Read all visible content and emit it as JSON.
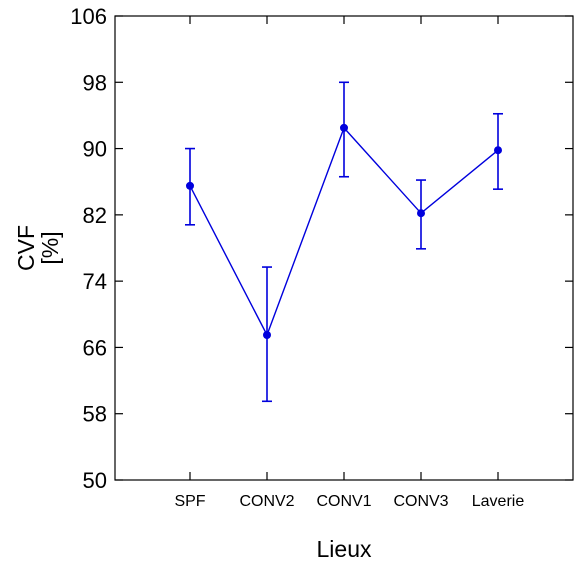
{
  "chart_data": {
    "type": "line",
    "title": "",
    "xlabel": "Lieux",
    "ylabel": [
      "CVF",
      "[%]"
    ],
    "categories": [
      "SPF",
      "CONV2",
      "CONV1",
      "CONV3",
      "Laverie"
    ],
    "ylim": [
      50,
      106
    ],
    "yticks": [
      50,
      58,
      66,
      74,
      82,
      90,
      98,
      106
    ],
    "grid": false,
    "legend": "none",
    "color": "#0000dd",
    "series": [
      {
        "values": [
          85.5,
          67.5,
          92.5,
          82.2,
          89.8
        ],
        "err_upper": [
          90.0,
          75.7,
          98.0,
          86.2,
          94.2
        ],
        "err_lower": [
          80.8,
          59.5,
          86.6,
          77.9,
          85.1
        ]
      }
    ]
  }
}
